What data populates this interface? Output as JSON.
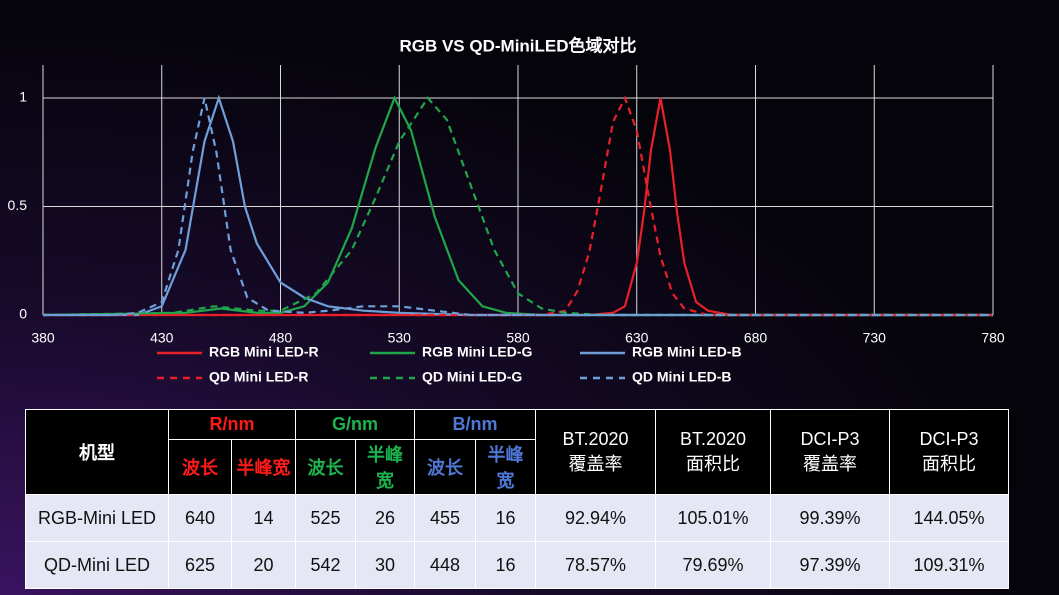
{
  "chart_data": {
    "type": "line",
    "title": "RGB VS QD-MiniLED色域对比",
    "xlim": [
      380,
      780
    ],
    "xticks": [
      380,
      430,
      480,
      530,
      580,
      630,
      680,
      730,
      780
    ],
    "ylim": [
      0,
      1
    ],
    "yticks": [
      0,
      0.5,
      1
    ],
    "grid": true,
    "series": [
      {
        "name": "RGB Mini LED-R",
        "color": "#e8202a",
        "dashed": false,
        "x": [
          380,
          610,
          620,
          625,
          630,
          633,
          636,
          640,
          644,
          647,
          650,
          655,
          660,
          670,
          780
        ],
        "values": [
          0,
          0,
          0.01,
          0.04,
          0.24,
          0.47,
          0.76,
          1,
          0.76,
          0.47,
          0.24,
          0.06,
          0.02,
          0,
          0
        ]
      },
      {
        "name": "RGB Mini LED-G",
        "color": "#1fa64a",
        "dashed": false,
        "x": [
          380,
          440,
          455,
          470,
          480,
          490,
          500,
          510,
          520,
          528,
          535,
          545,
          555,
          565,
          575,
          590,
          780
        ],
        "values": [
          0,
          0.01,
          0.03,
          0.01,
          0.01,
          0.04,
          0.15,
          0.4,
          0.77,
          1,
          0.85,
          0.45,
          0.16,
          0.04,
          0.01,
          0,
          0
        ]
      },
      {
        "name": "RGB Mini LED-B",
        "color": "#6f9fd8",
        "dashed": false,
        "x": [
          380,
          420,
          430,
          440,
          448,
          454,
          460,
          465,
          470,
          480,
          490,
          500,
          515,
          530,
          560,
          780
        ],
        "values": [
          0,
          0,
          0.04,
          0.3,
          0.8,
          1,
          0.8,
          0.5,
          0.33,
          0.15,
          0.08,
          0.04,
          0.02,
          0.01,
          0,
          0
        ]
      },
      {
        "name": "QD Mini LED-R",
        "color": "#e8202a",
        "dashed": true,
        "x": [
          380,
          590,
          600,
          605,
          610,
          615,
          620,
          625,
          630,
          635,
          640,
          645,
          650,
          660,
          780
        ],
        "values": [
          0,
          0,
          0.02,
          0.11,
          0.29,
          0.58,
          0.89,
          1,
          0.85,
          0.55,
          0.27,
          0.1,
          0.03,
          0,
          0
        ]
      },
      {
        "name": "QD Mini LED-G",
        "color": "#1fa64a",
        "dashed": true,
        "x": [
          380,
          435,
          452,
          470,
          480,
          495,
          510,
          520,
          530,
          542,
          550,
          560,
          570,
          580,
          590,
          600,
          615,
          780
        ],
        "values": [
          0,
          0.01,
          0.04,
          0.02,
          0.02,
          0.1,
          0.3,
          0.54,
          0.8,
          1,
          0.9,
          0.6,
          0.3,
          0.1,
          0.03,
          0.01,
          0,
          0
        ]
      },
      {
        "name": "QD Mini LED-B",
        "color": "#6f9fd8",
        "dashed": true,
        "x": [
          380,
          410,
          420,
          430,
          437,
          443,
          448,
          453,
          459,
          466,
          475,
          490,
          500,
          515,
          530,
          545,
          560,
          780
        ],
        "values": [
          0,
          0,
          0.01,
          0.06,
          0.3,
          0.75,
          1,
          0.75,
          0.3,
          0.08,
          0.02,
          0.01,
          0.02,
          0.04,
          0.04,
          0.02,
          0,
          0
        ]
      }
    ]
  },
  "table": {
    "model_header": "机型",
    "group_headers": [
      "R/nm",
      "G/nm",
      "B/nm"
    ],
    "sub_headers": [
      "波长",
      "半峰宽",
      "波长",
      "半峰宽",
      "波长",
      "半峰宽"
    ],
    "metric_headers": [
      "BT.2020\n覆盖率",
      "BT.2020\n面积比",
      "DCI-P3\n覆盖率",
      "DCI-P3\n面积比"
    ],
    "rows": [
      [
        "RGB-Mini LED",
        "640",
        "14",
        "525",
        "26",
        "455",
        "16",
        "92.94%",
        "105.01%",
        "99.39%",
        "144.05%"
      ],
      [
        "QD-Mini LED",
        "625",
        "20",
        "542",
        "30",
        "448",
        "16",
        "78.57%",
        "79.69%",
        "97.39%",
        "109.31%"
      ]
    ]
  }
}
